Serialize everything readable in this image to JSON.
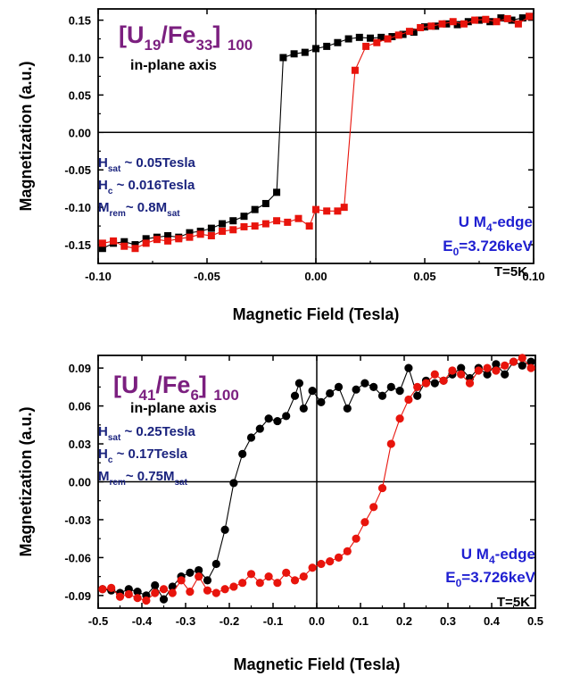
{
  "chart_data": [
    {
      "type": "scatter",
      "title_parts": [
        "[U",
        "19",
        "/Fe",
        "33",
        "] ",
        "100"
      ],
      "subtitle": "in-plane axis",
      "params": [
        {
          "main": "H",
          "sub": "sat",
          "rest": " ~ 0.05Tesla",
          "sub2": ""
        },
        {
          "main": "H",
          "sub": "c",
          "rest": " ~ 0.016Tesla",
          "sub2": ""
        },
        {
          "main": "M",
          "sub": "rem",
          "rest": "~ 0.8M",
          "sub2": "sat"
        }
      ],
      "edge_line1": [
        "U M",
        "4",
        "-edge"
      ],
      "edge_line2": [
        "E",
        "0",
        "=3.726keV"
      ],
      "temperature": "T=5K",
      "xlabel": "Magnetic Field (Tesla)",
      "ylabel": "Magnetization (a.u.)",
      "xlim": [
        -0.1,
        0.1
      ],
      "ylim": [
        -0.175,
        0.165
      ],
      "xticks": [
        -0.1,
        -0.05,
        0.0,
        0.05,
        0.1
      ],
      "xtick_labels": [
        "-0.10",
        "-0.05",
        "0.00",
        "0.05",
        "0.10"
      ],
      "yticks": [
        -0.15,
        -0.1,
        -0.05,
        0.0,
        0.05,
        0.1,
        0.15
      ],
      "ytick_labels": [
        "-0.15",
        "-0.10",
        "-0.05",
        "0.00",
        "0.05",
        "0.10",
        "0.15"
      ],
      "marker": "square",
      "series": [
        {
          "color": "#000000",
          "x": [
            -0.098,
            -0.093,
            -0.088,
            -0.083,
            -0.078,
            -0.073,
            -0.068,
            -0.063,
            -0.058,
            -0.053,
            -0.048,
            -0.043,
            -0.038,
            -0.033,
            -0.028,
            -0.023,
            -0.018,
            -0.015,
            -0.01,
            -0.005,
            0.0,
            0.005,
            0.01,
            0.015,
            0.02,
            0.025,
            0.03,
            0.035,
            0.04,
            0.045,
            0.05,
            0.055,
            0.06,
            0.065,
            0.07,
            0.075,
            0.08,
            0.085,
            0.09,
            0.095,
            0.098
          ],
          "y": [
            -0.155,
            -0.148,
            -0.146,
            -0.15,
            -0.142,
            -0.14,
            -0.138,
            -0.14,
            -0.134,
            -0.132,
            -0.128,
            -0.122,
            -0.118,
            -0.112,
            -0.103,
            -0.095,
            -0.08,
            0.1,
            0.105,
            0.107,
            0.112,
            0.115,
            0.12,
            0.125,
            0.127,
            0.126,
            0.127,
            0.128,
            0.131,
            0.134,
            0.141,
            0.142,
            0.145,
            0.144,
            0.148,
            0.15,
            0.148,
            0.153,
            0.15,
            0.153,
            0.155
          ]
        },
        {
          "color": "#e8140c",
          "x": [
            -0.098,
            -0.093,
            -0.088,
            -0.083,
            -0.078,
            -0.073,
            -0.068,
            -0.063,
            -0.058,
            -0.053,
            -0.048,
            -0.043,
            -0.038,
            -0.033,
            -0.028,
            -0.023,
            -0.018,
            -0.013,
            -0.008,
            -0.003,
            0.0,
            0.005,
            0.01,
            0.013,
            0.018,
            0.023,
            0.028,
            0.033,
            0.038,
            0.043,
            0.048,
            0.053,
            0.058,
            0.063,
            0.068,
            0.073,
            0.078,
            0.083,
            0.088,
            0.093,
            0.098
          ],
          "y": [
            -0.148,
            -0.145,
            -0.152,
            -0.155,
            -0.148,
            -0.143,
            -0.145,
            -0.142,
            -0.14,
            -0.136,
            -0.138,
            -0.132,
            -0.13,
            -0.126,
            -0.125,
            -0.122,
            -0.118,
            -0.12,
            -0.115,
            -0.125,
            -0.103,
            -0.105,
            -0.105,
            -0.1,
            0.083,
            0.115,
            0.12,
            0.125,
            0.13,
            0.135,
            0.14,
            0.142,
            0.145,
            0.148,
            0.145,
            0.15,
            0.151,
            0.148,
            0.152,
            0.145,
            0.155
          ]
        }
      ]
    },
    {
      "type": "scatter",
      "title_parts": [
        "[U",
        "41",
        "/Fe",
        "6",
        "] ",
        "100"
      ],
      "subtitle": "in-plane axis",
      "params": [
        {
          "main": "H",
          "sub": "sat",
          "rest": " ~ 0.25Tesla",
          "sub2": ""
        },
        {
          "main": "H",
          "sub": "c",
          "rest": " ~ 0.17Tesla",
          "sub2": ""
        },
        {
          "main": "M",
          "sub": "rem",
          "rest": "~ 0.75M",
          "sub2": "sat"
        }
      ],
      "edge_line1": [
        "U M",
        "4",
        "-edge"
      ],
      "edge_line2": [
        "E",
        "0",
        "=3.726keV"
      ],
      "temperature": "T=5K",
      "xlabel": "Magnetic Field (Tesla)",
      "ylabel": "Magnetization (a.u.)",
      "xlim": [
        -0.5,
        0.5
      ],
      "ylim": [
        -0.1,
        0.1
      ],
      "xticks": [
        -0.5,
        -0.4,
        -0.3,
        -0.2,
        -0.1,
        0.0,
        0.1,
        0.2,
        0.3,
        0.4,
        0.5
      ],
      "xtick_labels": [
        "-0.5",
        "-0.4",
        "-0.3",
        "-0.2",
        "-0.1",
        "0.0",
        "0.1",
        "0.2",
        "0.3",
        "0.4",
        "0.5"
      ],
      "yticks": [
        -0.09,
        -0.06,
        -0.03,
        0.0,
        0.03,
        0.06,
        0.09
      ],
      "ytick_labels": [
        "-0.09",
        "-0.06",
        "-0.03",
        "0.00",
        "0.03",
        "0.06",
        "0.09"
      ],
      "marker": "circle",
      "series": [
        {
          "color": "#000000",
          "x": [
            -0.49,
            -0.47,
            -0.45,
            -0.43,
            -0.41,
            -0.39,
            -0.37,
            -0.35,
            -0.33,
            -0.31,
            -0.29,
            -0.27,
            -0.25,
            -0.23,
            -0.21,
            -0.19,
            -0.17,
            -0.15,
            -0.13,
            -0.11,
            -0.09,
            -0.07,
            -0.05,
            -0.04,
            -0.03,
            -0.01,
            0.01,
            0.03,
            0.05,
            0.07,
            0.09,
            0.11,
            0.13,
            0.15,
            0.17,
            0.19,
            0.21,
            0.23,
            0.25,
            0.27,
            0.29,
            0.31,
            0.33,
            0.35,
            0.37,
            0.39,
            0.41,
            0.43,
            0.45,
            0.47,
            0.49
          ],
          "y": [
            -0.085,
            -0.086,
            -0.088,
            -0.085,
            -0.087,
            -0.09,
            -0.082,
            -0.093,
            -0.083,
            -0.075,
            -0.072,
            -0.07,
            -0.078,
            -0.065,
            -0.038,
            -0.001,
            0.022,
            0.035,
            0.042,
            0.05,
            0.048,
            0.052,
            0.068,
            0.078,
            0.058,
            0.072,
            0.063,
            0.07,
            0.075,
            0.058,
            0.073,
            0.078,
            0.075,
            0.068,
            0.075,
            0.072,
            0.09,
            0.068,
            0.08,
            0.078,
            0.08,
            0.085,
            0.09,
            0.082,
            0.09,
            0.085,
            0.093,
            0.085,
            0.095,
            0.092,
            0.095
          ]
        },
        {
          "color": "#e8140c",
          "x": [
            -0.49,
            -0.47,
            -0.45,
            -0.43,
            -0.41,
            -0.39,
            -0.37,
            -0.35,
            -0.33,
            -0.31,
            -0.29,
            -0.27,
            -0.25,
            -0.23,
            -0.21,
            -0.19,
            -0.17,
            -0.15,
            -0.13,
            -0.11,
            -0.09,
            -0.07,
            -0.05,
            -0.03,
            -0.01,
            0.01,
            0.03,
            0.05,
            0.07,
            0.09,
            0.11,
            0.13,
            0.15,
            0.17,
            0.19,
            0.21,
            0.23,
            0.25,
            0.27,
            0.29,
            0.31,
            0.33,
            0.35,
            0.37,
            0.39,
            0.41,
            0.43,
            0.45,
            0.47,
            0.49
          ],
          "y": [
            -0.085,
            -0.084,
            -0.091,
            -0.089,
            -0.092,
            -0.094,
            -0.088,
            -0.085,
            -0.088,
            -0.078,
            -0.087,
            -0.075,
            -0.086,
            -0.088,
            -0.085,
            -0.083,
            -0.08,
            -0.073,
            -0.08,
            -0.075,
            -0.08,
            -0.072,
            -0.078,
            -0.075,
            -0.068,
            -0.065,
            -0.063,
            -0.06,
            -0.055,
            -0.045,
            -0.032,
            -0.02,
            -0.005,
            0.03,
            0.05,
            0.065,
            0.075,
            0.078,
            0.085,
            0.08,
            0.088,
            0.085,
            0.078,
            0.088,
            0.09,
            0.088,
            0.092,
            0.095,
            0.098,
            0.09
          ]
        }
      ]
    }
  ]
}
